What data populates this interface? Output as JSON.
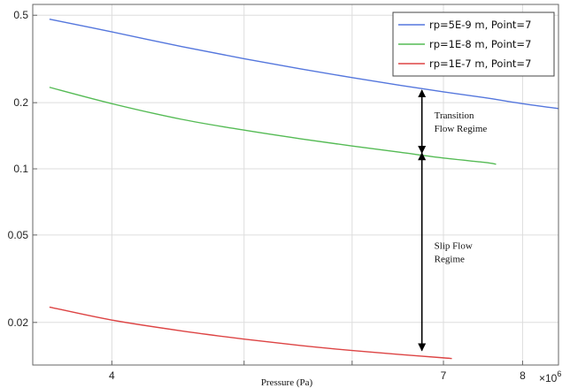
{
  "chart_data": {
    "type": "line",
    "title": "",
    "xlabel": "Pressure (Pa)",
    "ylabel": "",
    "x_scale": "log",
    "y_scale": "log",
    "x_multiplier": "×10",
    "x_multiplier_exp": "6",
    "xlim": [
      3.5,
      8.5
    ],
    "ylim": [
      0.0128,
      0.56
    ],
    "x_ticks": [
      4,
      5,
      6,
      7,
      8
    ],
    "x_tick_labels": [
      "4",
      "",
      "",
      "7",
      "8"
    ],
    "y_ticks": [
      0.02,
      0.05,
      0.1,
      0.2,
      0.5
    ],
    "y_tick_labels": [
      "0.02",
      "0.05",
      "0.1",
      "0.2",
      "0.5"
    ],
    "grid": true,
    "legend_position": "top-right",
    "series": [
      {
        "name": "rp=5E-9 m, Point=7",
        "color": "#5577dd",
        "x": [
          3.6,
          4.0,
          4.5,
          5.0,
          5.5,
          6.0,
          6.5,
          7.0,
          7.5,
          8.0,
          8.5
        ],
        "y": [
          0.48,
          0.42,
          0.36,
          0.317,
          0.285,
          0.26,
          0.24,
          0.224,
          0.211,
          0.198,
          0.188
        ]
      },
      {
        "name": "rp=1E-8 m, Point=7",
        "color": "#55bb55",
        "x": [
          3.6,
          4.0,
          4.5,
          5.0,
          5.5,
          6.0,
          6.5,
          7.0,
          7.5,
          7.65
        ],
        "y": [
          0.235,
          0.198,
          0.168,
          0.15,
          0.137,
          0.127,
          0.119,
          0.112,
          0.107,
          0.105
        ]
      },
      {
        "name": "rp=1E-7 m, Point=7",
        "color": "#dd4444",
        "x": [
          3.6,
          4.0,
          4.5,
          5.0,
          5.5,
          6.0,
          6.5,
          7.0,
          7.1
        ],
        "y": [
          0.0235,
          0.0205,
          0.0183,
          0.0168,
          0.0157,
          0.0149,
          0.0143,
          0.0138,
          0.0137
        ]
      }
    ],
    "annotations": [
      {
        "lines": [
          "Transition",
          "Flow Regime"
        ],
        "arrow_x": 6.75,
        "y_from": 0.118,
        "y_to": 0.228
      },
      {
        "lines": [
          "Slip Flow",
          "Regime"
        ],
        "arrow_x": 6.75,
        "y_from": 0.0149,
        "y_to": 0.118
      }
    ]
  }
}
